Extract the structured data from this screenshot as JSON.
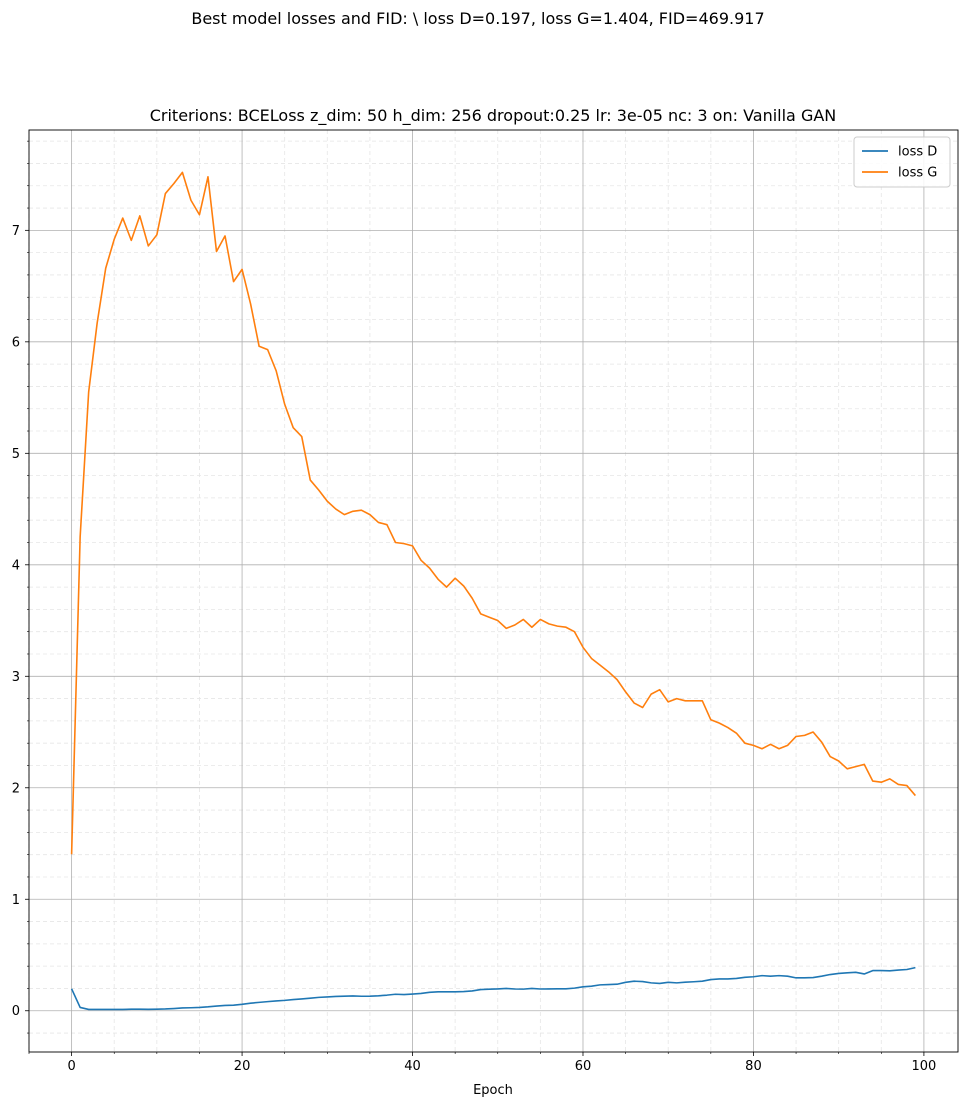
{
  "figure": {
    "suptitle": "Best model losses and FID:  \\ loss D=0.197, loss G=1.404, FID=469.917"
  },
  "chart_data": {
    "type": "line",
    "title": "Criterions: BCELoss  z_dim: 50 h_dim: 256 dropout:0.25 lr: 3e-05 nc: 3 on: Vanilla GAN",
    "xlabel": "Epoch",
    "ylabel": "",
    "xlim": [
      -5,
      104
    ],
    "ylim": [
      -0.37,
      7.9
    ],
    "xticks": [
      0,
      20,
      40,
      60,
      80,
      100
    ],
    "yticks": [
      0,
      1,
      2,
      3,
      4,
      5,
      6,
      7
    ],
    "grid": true,
    "minor_grid": true,
    "legend_position": "upper right",
    "x": [
      0,
      1,
      2,
      3,
      4,
      5,
      6,
      7,
      8,
      9,
      10,
      11,
      12,
      13,
      14,
      15,
      16,
      17,
      18,
      19,
      20,
      21,
      22,
      23,
      24,
      25,
      26,
      27,
      28,
      29,
      30,
      31,
      32,
      33,
      34,
      35,
      36,
      37,
      38,
      39,
      40,
      41,
      42,
      43,
      44,
      45,
      46,
      47,
      48,
      49,
      50,
      51,
      52,
      53,
      54,
      55,
      56,
      57,
      58,
      59,
      60,
      61,
      62,
      63,
      64,
      65,
      66,
      67,
      68,
      69,
      70,
      71,
      72,
      73,
      74,
      75,
      76,
      77,
      78,
      79,
      80,
      81,
      82,
      83,
      84,
      85,
      86,
      87,
      88,
      89,
      90,
      91,
      92,
      93,
      94,
      95,
      96,
      97,
      98,
      99
    ],
    "series": [
      {
        "name": "loss D",
        "color": "#1f77b4",
        "values": [
          0.197,
          0.03,
          0.012,
          0.012,
          0.012,
          0.012,
          0.012,
          0.014,
          0.014,
          0.013,
          0.014,
          0.016,
          0.02,
          0.025,
          0.027,
          0.03,
          0.035,
          0.042,
          0.048,
          0.05,
          0.058,
          0.068,
          0.075,
          0.082,
          0.088,
          0.093,
          0.1,
          0.106,
          0.113,
          0.12,
          0.124,
          0.128,
          0.131,
          0.133,
          0.13,
          0.131,
          0.134,
          0.14,
          0.148,
          0.145,
          0.15,
          0.155,
          0.165,
          0.17,
          0.17,
          0.17,
          0.172,
          0.178,
          0.19,
          0.193,
          0.196,
          0.2,
          0.195,
          0.194,
          0.2,
          0.195,
          0.196,
          0.197,
          0.197,
          0.203,
          0.215,
          0.22,
          0.232,
          0.235,
          0.238,
          0.255,
          0.265,
          0.262,
          0.25,
          0.245,
          0.255,
          0.25,
          0.256,
          0.26,
          0.265,
          0.28,
          0.285,
          0.285,
          0.29,
          0.3,
          0.305,
          0.315,
          0.31,
          0.315,
          0.31,
          0.295,
          0.295,
          0.298,
          0.31,
          0.325,
          0.335,
          0.34,
          0.345,
          0.33,
          0.36,
          0.36,
          0.358,
          0.365,
          0.37,
          0.387
        ]
      },
      {
        "name": "loss G",
        "color": "#ff7f0e",
        "values": [
          1.404,
          4.25,
          5.55,
          6.17,
          6.66,
          6.92,
          7.11,
          6.91,
          7.13,
          6.86,
          6.96,
          7.33,
          7.42,
          7.52,
          7.27,
          7.14,
          7.48,
          6.81,
          6.95,
          6.54,
          6.65,
          6.34,
          5.96,
          5.93,
          5.74,
          5.44,
          5.23,
          5.15,
          4.76,
          4.67,
          4.57,
          4.5,
          4.45,
          4.48,
          4.49,
          4.45,
          4.38,
          4.36,
          4.2,
          4.19,
          4.17,
          4.04,
          3.97,
          3.87,
          3.8,
          3.88,
          3.81,
          3.7,
          3.56,
          3.53,
          3.5,
          3.43,
          3.46,
          3.51,
          3.44,
          3.51,
          3.47,
          3.45,
          3.44,
          3.4,
          3.26,
          3.16,
          3.1,
          3.04,
          2.97,
          2.86,
          2.76,
          2.72,
          2.84,
          2.88,
          2.77,
          2.8,
          2.78,
          2.78,
          2.78,
          2.61,
          2.58,
          2.54,
          2.49,
          2.4,
          2.38,
          2.35,
          2.39,
          2.35,
          2.38,
          2.46,
          2.47,
          2.5,
          2.41,
          2.28,
          2.24,
          2.17,
          2.19,
          2.21,
          2.06,
          2.05,
          2.08,
          2.03,
          2.02,
          1.93
        ]
      }
    ]
  }
}
